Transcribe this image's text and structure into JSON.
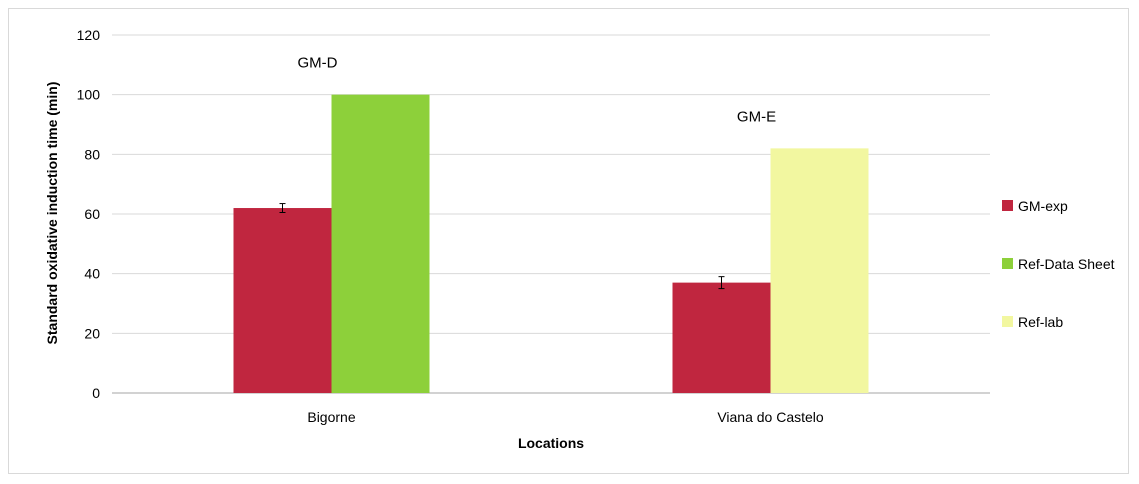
{
  "chart_data": {
    "type": "bar",
    "ylabel": "Standard oxidative induction time  (min)",
    "xlabel": "Locations",
    "ylim": [
      0,
      120
    ],
    "yticks": [
      0,
      20,
      40,
      60,
      80,
      100,
      120
    ],
    "grid": true,
    "legend_position": "right",
    "categories": [
      "Bigorne",
      "Viana do Castelo"
    ],
    "group_labels": [
      "GM-D",
      "GM-E"
    ],
    "series": [
      {
        "name": "GM-exp",
        "color": "#c0263f",
        "values": [
          62,
          37
        ],
        "errors": [
          1.5,
          2
        ]
      },
      {
        "name": "Ref-Data Sheet",
        "color": "#8dd03a",
        "values": [
          100,
          null
        ]
      },
      {
        "name": "Ref-lab",
        "color": "#f2f7a0",
        "values": [
          null,
          82
        ]
      }
    ]
  }
}
